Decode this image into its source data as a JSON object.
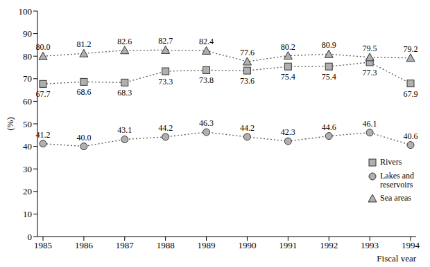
{
  "chart_data": {
    "type": "line",
    "x_label": "Fiscal year",
    "y_label": "(%)",
    "categories": [
      "1985",
      "1986",
      "1987",
      "1988",
      "1989",
      "1990",
      "1991",
      "1992",
      "1993",
      "1994"
    ],
    "series": [
      {
        "name": "Rivers",
        "color": "#555555",
        "marker": "square",
        "line_style": "dotted",
        "values": [
          67.7,
          68.6,
          68.3,
          73.3,
          73.8,
          73.6,
          75.4,
          75.4,
          77.3,
          67.9
        ],
        "value_labels": [
          "67.7",
          "68.6",
          "68.3",
          "73.3",
          "73.8",
          "73.6",
          "75.4",
          "75.4",
          "77.3",
          "67.9"
        ]
      },
      {
        "name": "Lakes and reservoirs",
        "color": "#555555",
        "marker": "circle",
        "line_style": "dotted",
        "values": [
          41.2,
          40.0,
          43.1,
          44.2,
          46.3,
          44.2,
          42.3,
          44.6,
          46.1,
          40.6
        ],
        "value_labels": [
          "41.2",
          "40.0",
          "43.1",
          "44.2",
          "46.3",
          "44.2",
          "42.3",
          "44.6",
          "46.1",
          "40.6"
        ]
      },
      {
        "name": "Sea areas",
        "color": "#555555",
        "marker": "triangle",
        "line_style": "dotted",
        "values": [
          80.0,
          81.2,
          82.6,
          82.7,
          82.4,
          77.6,
          80.2,
          80.9,
          79.5,
          79.2
        ],
        "value_labels": [
          "80.0",
          "81.2",
          "82.6",
          "82.7",
          "82.4",
          "77.6",
          "80.2",
          "80.9",
          "79.5",
          "79.2"
        ]
      }
    ],
    "ylim": [
      0,
      100
    ],
    "yticks": [
      0,
      10,
      20,
      30,
      40,
      50,
      60,
      70,
      80,
      90,
      100
    ],
    "legend": "right",
    "data_labels": true
  }
}
